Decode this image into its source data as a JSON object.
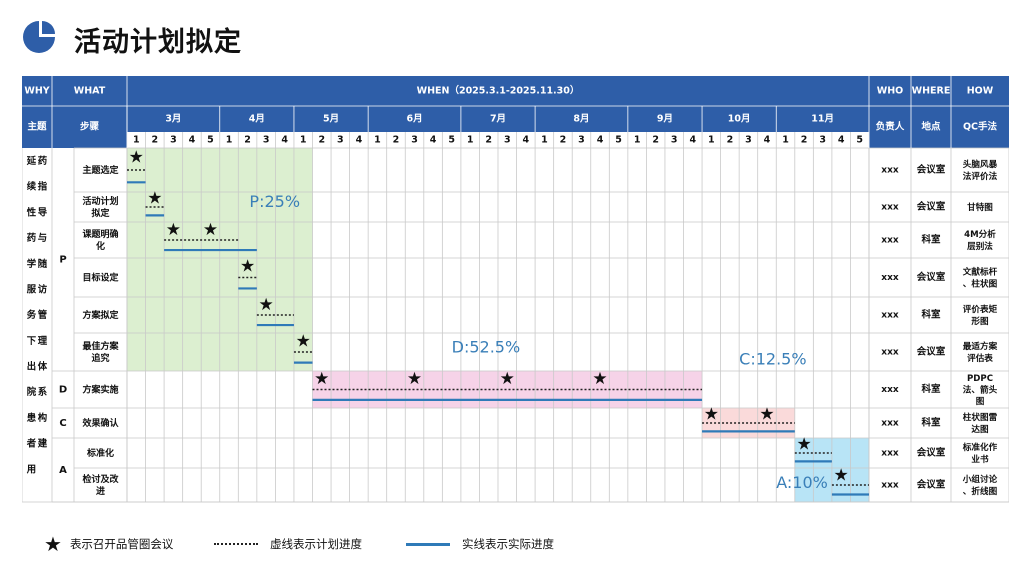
{
  "page": {
    "title": "活动计划拟定"
  },
  "header": {
    "why": "WHY",
    "what": "WHAT",
    "when": "WHEN（2025.3.1-2025.11.30）",
    "who": "WHO",
    "where": "WHERE",
    "how": "HOW",
    "theme": "主题",
    "steps": "步骤",
    "owner": "负责人",
    "place": "地点",
    "method": "QC手法"
  },
  "months": [
    {
      "label": "3月",
      "weeks": 5
    },
    {
      "label": "4月",
      "weeks": 4
    },
    {
      "label": "5月",
      "weeks": 4
    },
    {
      "label": "6月",
      "weeks": 5
    },
    {
      "label": "7月",
      "weeks": 4
    },
    {
      "label": "8月",
      "weeks": 5
    },
    {
      "label": "9月",
      "weeks": 4
    },
    {
      "label": "10月",
      "weeks": 4
    },
    {
      "label": "11月",
      "weeks": 5
    }
  ],
  "theme_text": "延续性药学服务下出院患者用药指导与随访管理体系构建",
  "phases": [
    {
      "letter": "P",
      "first_row": 0,
      "last_row": 5,
      "label": "P:25%",
      "color": "#dcefd0",
      "start_week": 1,
      "end_week": 10
    },
    {
      "letter": "D",
      "first_row": 6,
      "last_row": 6,
      "label": "D:52.5%",
      "color": "#f6d3e8",
      "start_week": 11,
      "end_week": 31
    },
    {
      "letter": "C",
      "first_row": 7,
      "last_row": 7,
      "label": "C:12.5%",
      "color": "#fadada",
      "start_week": 32,
      "end_week": 36
    },
    {
      "letter": "A",
      "first_row": 8,
      "last_row": 9,
      "label": "A:10%",
      "color": "#b8e4f6",
      "start_week": 37,
      "end_week": 40
    }
  ],
  "tasks": [
    {
      "step": "主题选定",
      "owner": "xxx",
      "place": "会议室",
      "method": "头脑风暴法评价法",
      "plan": [
        1,
        1
      ],
      "actual": [
        1,
        1
      ],
      "stars": [
        1
      ]
    },
    {
      "step": "活动计划拟定",
      "owner": "xxx",
      "place": "会议室",
      "method": "甘特图",
      "plan": [
        2,
        2
      ],
      "actual": [
        2,
        2
      ],
      "stars": [
        2
      ]
    },
    {
      "step": "课题明确化",
      "owner": "xxx",
      "place": "科室",
      "method": "4M分析层别法",
      "plan": [
        3,
        6
      ],
      "actual": [
        3,
        7
      ],
      "stars": [
        3,
        5
      ]
    },
    {
      "step": "目标设定",
      "owner": "xxx",
      "place": "会议室",
      "method": "文献标杆、柱状图",
      "plan": [
        7,
        7
      ],
      "actual": [
        7,
        7
      ],
      "stars": [
        7
      ]
    },
    {
      "step": "方案拟定",
      "owner": "xxx",
      "place": "科室",
      "method": "评价表矩形图",
      "plan": [
        8,
        9
      ],
      "actual": [
        8,
        9
      ],
      "stars": [
        8
      ]
    },
    {
      "step": "最佳方案追究",
      "owner": "xxx",
      "place": "会议室",
      "method": "最适方案评估表",
      "plan": [
        10,
        10
      ],
      "actual": [
        10,
        10
      ],
      "stars": [
        10
      ]
    },
    {
      "step": "方案实施",
      "owner": "xxx",
      "place": "科室",
      "method": "PDPC法、箭头图",
      "plan": [
        11,
        31
      ],
      "actual": [
        11,
        31
      ],
      "stars": [
        11,
        16,
        21,
        26
      ]
    },
    {
      "step": "效果确认",
      "owner": "xxx",
      "place": "科室",
      "method": "柱状图雷达图",
      "plan": [
        32,
        36
      ],
      "actual": [
        32,
        36
      ],
      "stars": [
        32,
        35
      ]
    },
    {
      "step": "标准化",
      "owner": "xxx",
      "place": "会议室",
      "method": "标准化作业书",
      "plan": [
        37,
        38
      ],
      "actual": [
        37,
        38
      ],
      "stars": [
        37
      ]
    },
    {
      "step": "检讨及改进",
      "owner": "xxx",
      "place": "会议室",
      "method": "小组讨论、折线图",
      "plan": [
        39,
        40
      ],
      "actual": [
        39,
        40
      ],
      "stars": [
        39
      ]
    }
  ],
  "legend": {
    "star_label": "表示召开品管圈会议",
    "dashed_label": "虚线表示计划进度",
    "solid_label": "实线表示实际进度"
  },
  "colors": {
    "header": "#2e5ea8",
    "grid": "#c9c9c9",
    "plan_line": "#222222",
    "actual_line": "#2f7ab8",
    "phase_text": "#3a7fb8"
  }
}
